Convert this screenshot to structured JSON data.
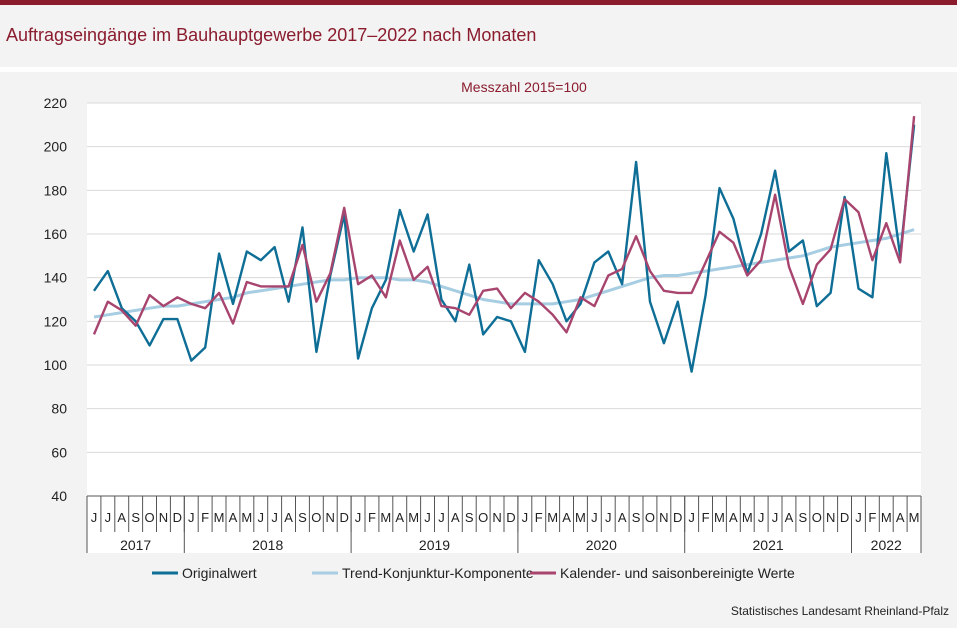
{
  "header": {
    "title": "Auftragseingänge im Bauhauptgewerbe 2017–2022 nach Monaten"
  },
  "footer": {
    "source": "Statistisches Landesamt Rheinland-Pfalz"
  },
  "chart_data": {
    "type": "line",
    "subtitle": "Messzahl 2015=100",
    "ylim": [
      40,
      220
    ],
    "yticks": [
      40,
      60,
      80,
      100,
      120,
      140,
      160,
      180,
      200,
      220
    ],
    "month_labels": [
      "J",
      "J",
      "A",
      "S",
      "O",
      "N",
      "D",
      "J",
      "F",
      "M",
      "A",
      "M",
      "J",
      "J",
      "A",
      "S",
      "O",
      "N",
      "D",
      "J",
      "F",
      "M",
      "A",
      "M",
      "J",
      "J",
      "A",
      "S",
      "O",
      "N",
      "D",
      "J",
      "F",
      "M",
      "A",
      "M",
      "J",
      "J",
      "A",
      "S",
      "O",
      "N",
      "D",
      "J",
      "F",
      "M",
      "A",
      "M",
      "J",
      "J",
      "A",
      "S",
      "O",
      "N",
      "D",
      "J",
      "F",
      "M",
      "A",
      "M"
    ],
    "years": [
      {
        "label": "2017",
        "months": 7
      },
      {
        "label": "2018",
        "months": 12
      },
      {
        "label": "2019",
        "months": 12
      },
      {
        "label": "2020",
        "months": 12
      },
      {
        "label": "2021",
        "months": 12
      },
      {
        "label": "2022",
        "months": 5
      }
    ],
    "series": [
      {
        "name": "Originalwert",
        "color": "#0e6e96",
        "values": [
          134,
          143,
          126,
          120,
          109,
          121,
          121,
          102,
          108,
          151,
          128,
          152,
          148,
          154,
          129,
          163,
          106,
          141,
          169,
          103,
          126,
          139,
          171,
          152,
          169,
          130,
          120,
          146,
          114,
          122,
          120,
          106,
          148,
          137,
          120,
          128,
          147,
          152,
          137,
          193,
          129,
          110,
          129,
          97,
          132,
          181,
          167,
          142,
          160,
          189,
          152,
          157,
          127,
          133,
          177,
          135,
          131,
          197,
          150,
          210
        ]
      },
      {
        "name": "Trend-Konjunktur-Komponente",
        "color": "#a6cde2",
        "values": [
          122,
          123,
          124,
          125,
          126,
          127,
          127,
          128,
          129,
          130,
          131,
          133,
          134,
          135,
          136,
          137,
          138,
          139,
          139,
          140,
          140,
          140,
          139,
          139,
          138,
          136,
          134,
          132,
          130,
          129,
          128,
          128,
          128,
          128,
          129,
          130,
          132,
          134,
          136,
          138,
          140,
          141,
          141,
          142,
          143,
          144,
          145,
          146,
          147,
          148,
          149,
          150,
          152,
          154,
          155,
          156,
          157,
          158,
          160,
          162
        ]
      },
      {
        "name": "Kalender- und saisonbereinigte Werte",
        "color": "#a8456f",
        "values": [
          114,
          129,
          125,
          118,
          132,
          127,
          131,
          128,
          126,
          133,
          119,
          138,
          136,
          136,
          136,
          155,
          129,
          142,
          172,
          137,
          141,
          131,
          157,
          139,
          145,
          127,
          126,
          123,
          134,
          135,
          126,
          133,
          129,
          123,
          115,
          131,
          127,
          141,
          144,
          159,
          143,
          134,
          133,
          133,
          147,
          161,
          156,
          141,
          148,
          178,
          145,
          128,
          146,
          153,
          176,
          170,
          148,
          165,
          147,
          214
        ]
      }
    ]
  }
}
